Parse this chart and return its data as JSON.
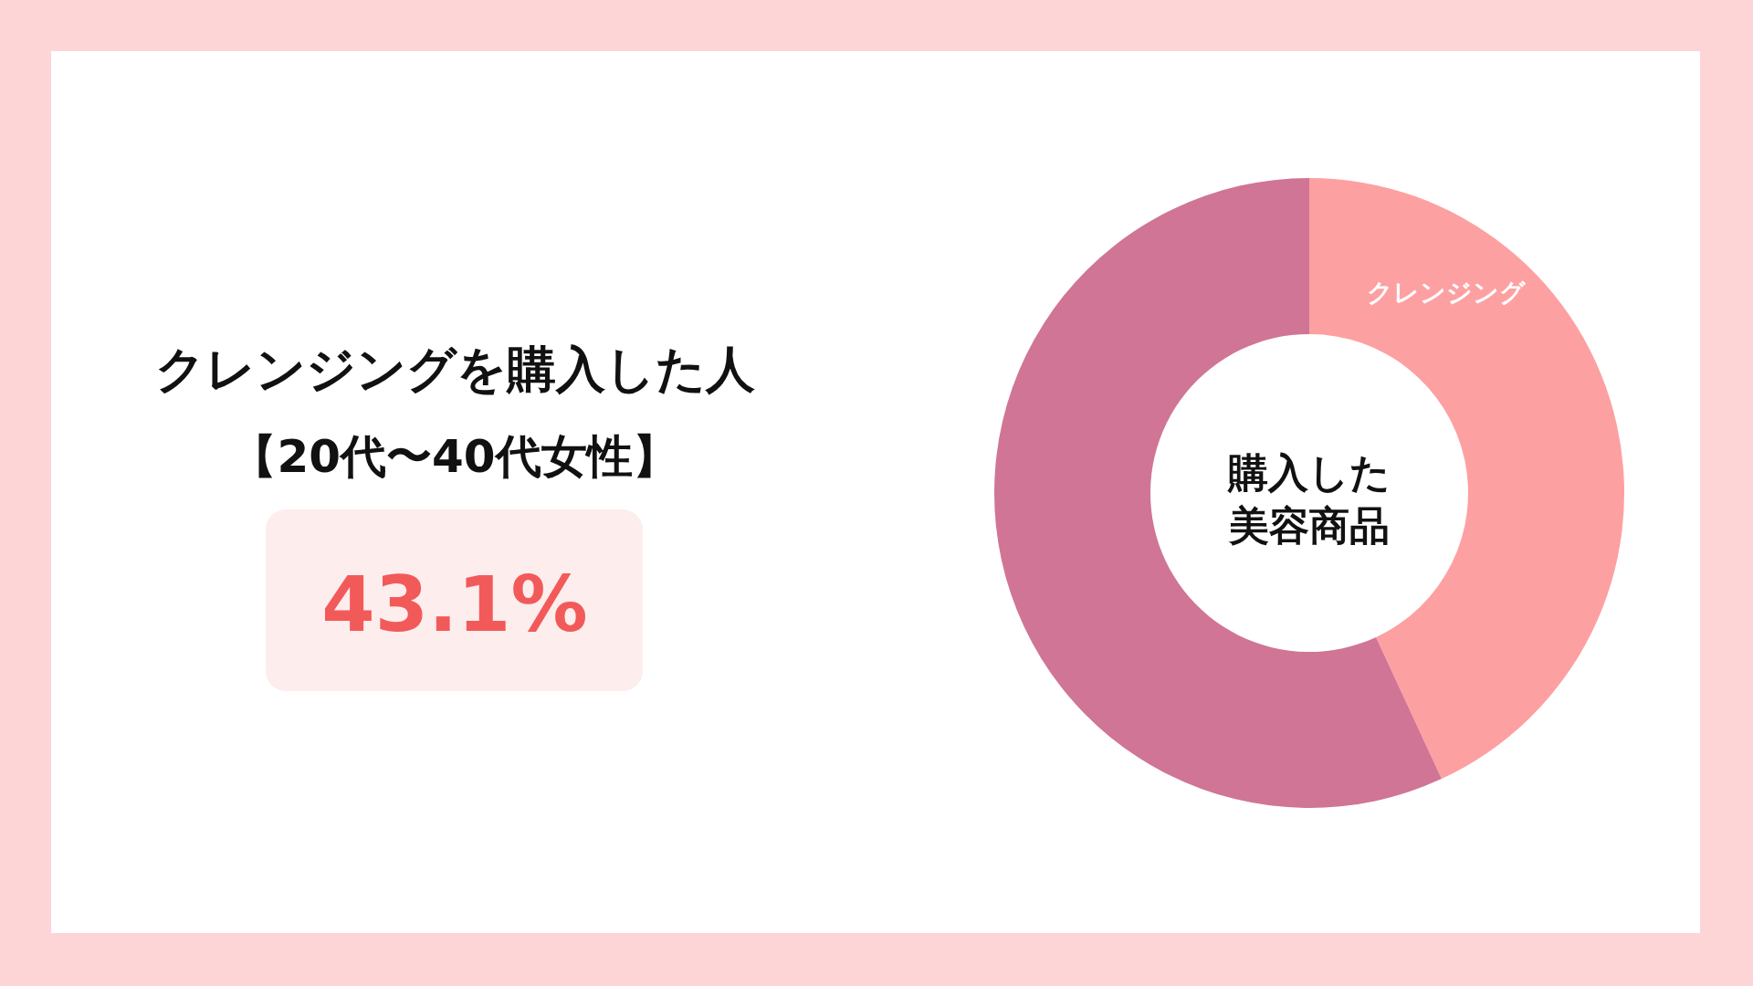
{
  "chart_data": {
    "type": "donut",
    "title": "クレンジングを購入した人",
    "subtitle": "【20代〜40代女性】",
    "categories": [
      "クレンジング",
      null
    ],
    "values": [
      43.1,
      56.9
    ],
    "colors": [
      "#fda0a2",
      "#d07595"
    ],
    "annotations": [
      "購入した美容商品",
      "43.1%"
    ]
  }
}
